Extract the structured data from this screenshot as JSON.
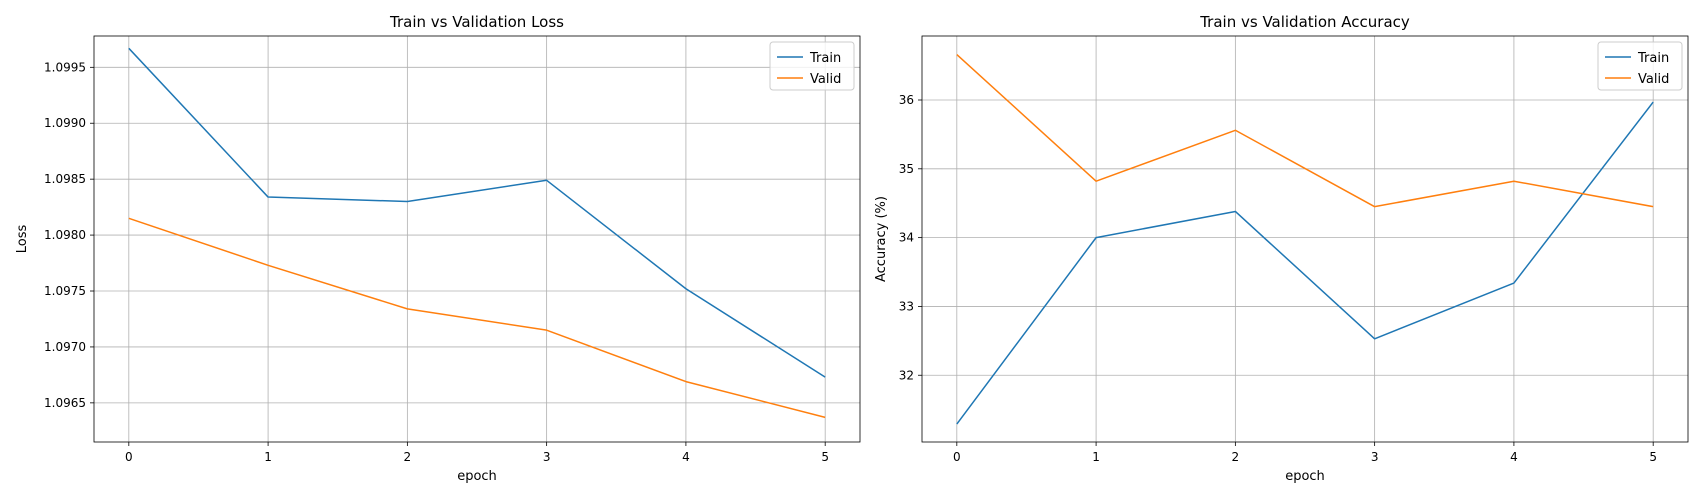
{
  "chart_data": [
    {
      "type": "line",
      "title": "Train vs Validation Loss",
      "xlabel": "epoch",
      "ylabel": "Loss",
      "x": [
        0,
        1,
        2,
        3,
        4,
        5
      ],
      "xticks": [
        "0",
        "1",
        "2",
        "3",
        "4",
        "5"
      ],
      "yticks": [
        "1.0965",
        "1.0970",
        "1.0975",
        "1.0980",
        "1.0985",
        "1.0990",
        "1.0995"
      ],
      "ytick_values": [
        1.0965,
        1.097,
        1.0975,
        1.098,
        1.0985,
        1.099,
        1.0995
      ],
      "xlim": [
        -0.25,
        5.25
      ],
      "ylim": [
        1.09615,
        1.09978
      ],
      "grid": true,
      "legend": "top-right",
      "series": [
        {
          "name": "Train",
          "color": "#1f77b4",
          "values": [
            1.09967,
            1.09834,
            1.0983,
            1.09849,
            1.09752,
            1.09673
          ]
        },
        {
          "name": "Valid",
          "color": "#ff7f0e",
          "values": [
            1.09815,
            1.09773,
            1.09734,
            1.09715,
            1.09669,
            1.09637
          ]
        }
      ]
    },
    {
      "type": "line",
      "title": "Train vs Validation Accuracy",
      "xlabel": "epoch",
      "ylabel": "Accuracy (%)",
      "x": [
        0,
        1,
        2,
        3,
        4,
        5
      ],
      "xticks": [
        "0",
        "1",
        "2",
        "3",
        "4",
        "5"
      ],
      "yticks": [
        "32",
        "33",
        "34",
        "35",
        "36"
      ],
      "ytick_values": [
        32,
        33,
        34,
        35,
        36
      ],
      "xlim": [
        -0.25,
        5.25
      ],
      "ylim": [
        31.03,
        36.93
      ],
      "grid": true,
      "legend": "top-right",
      "series": [
        {
          "name": "Train",
          "color": "#1f77b4",
          "values": [
            31.29,
            34.0,
            34.38,
            32.53,
            33.34,
            35.97
          ]
        },
        {
          "name": "Valid",
          "color": "#ff7f0e",
          "values": [
            36.66,
            34.82,
            35.56,
            34.45,
            34.82,
            34.45
          ]
        }
      ]
    }
  ]
}
